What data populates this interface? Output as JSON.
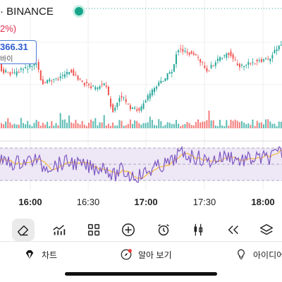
{
  "header": {
    "title": "· BINANCE",
    "change_pct": "2%)"
  },
  "price_label": {
    "value": "366.31",
    "sub": "바이"
  },
  "time_axis": [
    "16:00",
    "16:30",
    "17:00",
    "17:30",
    "18:00"
  ],
  "toolbar": [
    "eraser-icon",
    "trend-chart-icon",
    "grid-icon",
    "plus-circle-icon",
    "alarm-clock-icon",
    "candlestick-icon",
    "rewind-icon",
    "layers-icon"
  ],
  "bottom_nav": {
    "chart": "차트",
    "ideas_feed": "알아 보기",
    "ideas": "아이디어"
  },
  "colors": {
    "up": "#26a69a",
    "down": "#ef5350",
    "rsi_line": "#7e57c2",
    "rsi_ma": "#f5b841",
    "rsi_band": "#ede7f6",
    "live": "#17a589"
  }
}
